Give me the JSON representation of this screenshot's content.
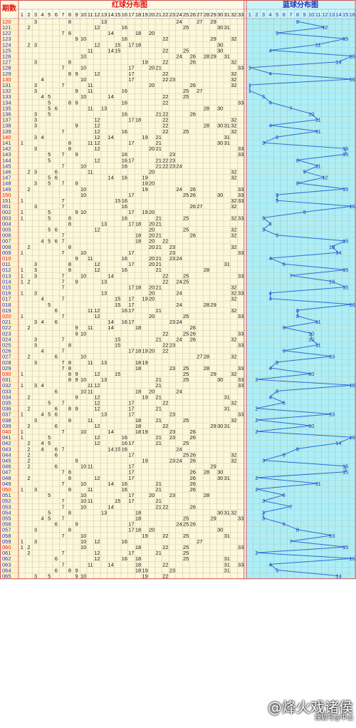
{
  "chart_data": {
    "type": "table",
    "header": {
      "period_label": "期数",
      "red_title": "红球分布图",
      "blue_title": "蓝球分布图"
    },
    "red_columns": [
      "1",
      "2",
      "3",
      "4",
      "5",
      "6",
      "7",
      "8",
      "9",
      "10",
      "11",
      "12",
      "13",
      "14",
      "15",
      "16",
      "17",
      "18",
      "19",
      "20",
      "21",
      "22",
      "23",
      "24",
      "25",
      "26",
      "27",
      "28",
      "29",
      "30",
      "31",
      "32",
      "33"
    ],
    "blue_columns": [
      "1",
      "2",
      "3",
      "4",
      "5",
      "6",
      "7",
      "8",
      "9",
      "10",
      "11",
      "12",
      "13",
      "14",
      "15",
      "16"
    ],
    "colors": {
      "red_ball": "#e41010",
      "number_text": "#111111",
      "blue_ball": "#1a2fb8",
      "blue_line": "#2b6fd6",
      "blue_bg": "#aeeef6",
      "red_bg": "#fdf8dc",
      "grid": "#c9c2a0",
      "period_bg": "#fff1c8"
    },
    "draws": [
      {
        "period": "120",
        "red": [
          3,
          8,
          13,
          24,
          27,
          29
        ],
        "blue": 8
      },
      {
        "period": "121",
        "red": [
          2,
          12,
          16,
          25,
          30,
          31
        ],
        "blue": 12
      },
      {
        "period": "122",
        "red": [
          7,
          8,
          14,
          18,
          20
        ],
        "blue": 5
      },
      {
        "period": "123",
        "red": [
          9,
          10,
          16,
          22,
          29,
          32
        ],
        "blue": 15
      },
      {
        "period": "124",
        "red": [
          2,
          3,
          12,
          15,
          17,
          18,
          30
        ],
        "blue": 11
      },
      {
        "period": "125",
        "red": [
          11,
          14,
          15,
          22,
          25,
          30
        ],
        "blue": 4
      },
      {
        "period": "126",
        "red": [
          10,
          24,
          26,
          28,
          29,
          31
        ],
        "blue": 16
      },
      {
        "period": "127",
        "red": [
          3,
          8,
          19,
          22,
          26,
          32
        ],
        "blue": 14
      },
      {
        "period": "128",
        "red": [
          7,
          10,
          17,
          20,
          21,
          33
        ],
        "blue": 1
      },
      {
        "period": "129",
        "red": [
          8,
          9,
          12,
          17,
          22,
          32
        ],
        "blue": 4
      },
      {
        "period": "130",
        "red": [
          4,
          10,
          17,
          22,
          23,
          32
        ],
        "blue": 16
      },
      {
        "period": "131",
        "red": [
          3,
          7,
          11,
          20,
          26,
          32
        ],
        "blue": 1
      },
      {
        "period": "132",
        "red": [
          3,
          9,
          11,
          16,
          25,
          27
        ],
        "blue": 1
      },
      {
        "period": "133",
        "red": [
          4,
          5,
          10,
          14,
          22,
          25
        ],
        "blue": 3
      },
      {
        "period": "134",
        "red": [
          5,
          8,
          9,
          16,
          22,
          33
        ],
        "blue": 4
      },
      {
        "period": "135",
        "red": [
          5,
          6,
          11,
          13,
          28,
          30
        ],
        "blue": 7
      },
      {
        "period": "136",
        "red": [
          3,
          5,
          16,
          21,
          22,
          26
        ],
        "blue": 10
      },
      {
        "period": "137",
        "red": [
          3,
          12,
          17,
          18,
          22,
          32
        ],
        "blue": 11
      },
      {
        "period": "138",
        "red": [
          3,
          9,
          12,
          22,
          28,
          30,
          31,
          32
        ],
        "blue": 4
      },
      {
        "period": "139",
        "red": [
          7,
          12,
          16,
          22,
          25,
          32
        ],
        "blue": 11
      },
      {
        "period": "140",
        "red": [
          3,
          4,
          12,
          14,
          19,
          21,
          31
        ],
        "blue": 5
      },
      {
        "period": "141",
        "red": [
          1,
          8,
          11,
          12,
          17,
          21,
          30,
          31
        ],
        "blue": 3
      },
      {
        "period": "142",
        "red": [
          3,
          8,
          12,
          20,
          21,
          33
        ],
        "blue": 15
      },
      {
        "period": "143",
        "red": [
          5,
          7,
          9,
          16,
          23,
          33
        ],
        "blue": 15
      },
      {
        "period": "144",
        "red": [
          5,
          12,
          16,
          17,
          21,
          22,
          23
        ],
        "blue": 8
      },
      {
        "period": "145",
        "red": [
          7,
          10,
          16,
          21,
          22,
          23,
          24
        ],
        "blue": 11
      },
      {
        "period": "146",
        "red": [
          2,
          3,
          6,
          11,
          20,
          32
        ],
        "blue": 9
      },
      {
        "period": "147",
        "red": [
          5,
          6,
          14,
          16,
          19,
          32
        ],
        "blue": 12
      },
      {
        "period": "148",
        "red": [
          3,
          5,
          7,
          9,
          19,
          20
        ],
        "blue": 8
      },
      {
        "period": "149",
        "red": [
          2,
          10,
          19,
          24,
          26,
          33
        ],
        "blue": 15
      },
      {
        "period": "150",
        "red": [
          10,
          17,
          25,
          26,
          30,
          33
        ],
        "blue": 5
      },
      {
        "period": "151",
        "red": [
          1,
          7,
          15,
          16,
          32,
          33
        ],
        "blue": 5
      },
      {
        "period": "001",
        "red": [
          3,
          7,
          16,
          26,
          27,
          32
        ],
        "blue": 16
      },
      {
        "period": "002",
        "red": [
          1,
          5,
          9,
          10,
          17,
          19,
          20
        ],
        "blue": 9
      },
      {
        "period": "003",
        "red": [
          1,
          5,
          8,
          16,
          21,
          25,
          32,
          33
        ],
        "blue": 3
      },
      {
        "period": "004",
        "red": [
          8,
          13,
          17,
          18,
          20,
          21
        ],
        "blue": 4
      },
      {
        "period": "005",
        "red": [
          5,
          6,
          12,
          20,
          25,
          32
        ],
        "blue": 3
      },
      {
        "period": "006",
        "red": [
          7,
          18,
          20,
          21,
          26,
          32
        ],
        "blue": 5
      },
      {
        "period": "007",
        "red": [
          4,
          5,
          6,
          7,
          18,
          20,
          22
        ],
        "blue": 15
      },
      {
        "period": "008",
        "red": [
          2,
          8,
          20,
          21,
          23,
          32
        ],
        "blue": 13
      },
      {
        "period": "009",
        "red": [
          1,
          7,
          10,
          17,
          23,
          33
        ],
        "blue": 14
      },
      {
        "period": "010",
        "red": [
          9,
          11,
          16,
          20,
          21,
          23,
          24
        ],
        "blue": 4
      },
      {
        "period": "011",
        "red": [
          3,
          8,
          12,
          17,
          20,
          21,
          31
        ],
        "blue": 6
      },
      {
        "period": "012",
        "red": [
          1,
          3,
          8,
          12,
          16,
          21,
          28
        ],
        "blue": 15
      },
      {
        "period": "013",
        "red": [
          1,
          3,
          7,
          10,
          14,
          22,
          25,
          33
        ],
        "blue": 7
      },
      {
        "period": "014",
        "red": [
          1,
          2,
          7,
          9,
          13,
          22,
          24,
          25
        ],
        "blue": 13
      },
      {
        "period": "015",
        "red": [
          7,
          17,
          18,
          20,
          21,
          32
        ],
        "blue": 15
      },
      {
        "period": "016",
        "red": [
          1,
          3,
          13,
          20,
          24,
          32,
          33
        ],
        "blue": 4
      },
      {
        "period": "017",
        "red": [
          4,
          7,
          15,
          17,
          19,
          20,
          32
        ],
        "blue": 4
      },
      {
        "period": "018",
        "red": [
          5,
          15,
          17,
          24,
          28,
          29
        ],
        "blue": 16
      },
      {
        "period": "019",
        "red": [
          6,
          11,
          12,
          16,
          17,
          21,
          32
        ],
        "blue": 8
      },
      {
        "period": "020",
        "red": [
          1,
          7,
          12,
          20,
          25,
          33
        ],
        "blue": 8
      },
      {
        "period": "021",
        "red": [
          3,
          4,
          6,
          14,
          16,
          17,
          23,
          24
        ],
        "blue": 11
      },
      {
        "period": "022",
        "red": [
          2,
          9,
          11,
          14,
          18,
          26
        ],
        "blue": 6
      },
      {
        "period": "023",
        "red": [
          9,
          10,
          22,
          25,
          26,
          33
        ],
        "blue": 10
      },
      {
        "period": "024",
        "red": [
          3,
          7,
          15,
          21,
          24,
          26,
          32
        ],
        "blue": 10
      },
      {
        "period": "025",
        "red": [
          3,
          8,
          15,
          22,
          23,
          33
        ],
        "blue": 11
      },
      {
        "period": "026",
        "red": [
          4,
          7,
          17,
          18,
          19,
          20,
          22
        ],
        "blue": 6
      },
      {
        "period": "027",
        "red": [
          2,
          6,
          10,
          27,
          28,
          32
        ],
        "blue": 13
      },
      {
        "period": "028",
        "red": [
          3,
          7,
          8,
          11,
          13,
          18,
          19
        ],
        "blue": 5
      },
      {
        "period": "029",
        "red": [
          7,
          8,
          18,
          23,
          25,
          28,
          33
        ],
        "blue": 4
      },
      {
        "period": "030",
        "red": [
          1,
          8,
          9,
          12,
          15,
          25,
          29,
          32
        ],
        "blue": 10
      },
      {
        "period": "031",
        "red": [
          8,
          9,
          10,
          13,
          21,
          25,
          30,
          33
        ],
        "blue": 2
      },
      {
        "period": "032",
        "red": [
          1,
          3,
          4,
          11,
          12,
          21,
          33
        ],
        "blue": 16
      },
      {
        "period": "033",
        "red": [
          6,
          10,
          11,
          18,
          20,
          24
        ],
        "blue": 5
      },
      {
        "period": "034",
        "red": [
          2,
          9,
          12,
          19,
          21,
          31
        ],
        "blue": 4
      },
      {
        "period": "035",
        "red": [
          5,
          7,
          12,
          17,
          22,
          32
        ],
        "blue": 6
      },
      {
        "period": "036",
        "red": [
          2,
          6,
          8,
          9,
          12,
          17,
          21,
          31
        ],
        "blue": 2
      },
      {
        "period": "037",
        "red": [
          1,
          4,
          5,
          6,
          13,
          17,
          23,
          33
        ],
        "blue": 13
      },
      {
        "period": "038",
        "red": [
          3,
          8,
          11,
          18,
          21,
          25,
          32
        ],
        "blue": 2
      },
      {
        "period": "039",
        "red": [
          2,
          6,
          12,
          18,
          22,
          29,
          30,
          31
        ],
        "blue": 10
      },
      {
        "period": "040",
        "red": [
          1,
          7,
          10,
          14,
          18,
          19,
          23,
          26
        ],
        "blue": 2
      },
      {
        "period": "041",
        "red": [
          1,
          5,
          12,
          16,
          21,
          23,
          26
        ],
        "blue": 16
      },
      {
        "period": "042",
        "red": [
          2,
          4,
          5,
          12,
          16,
          17,
          21,
          25
        ],
        "blue": 14
      },
      {
        "period": "043",
        "red": [
          2,
          4,
          6,
          7,
          14,
          15,
          16,
          24
        ],
        "blue": 8
      },
      {
        "period": "044",
        "red": [
          2,
          6,
          17,
          25,
          26,
          32
        ],
        "blue": 6
      },
      {
        "period": "045",
        "red": [
          2,
          9,
          19,
          23,
          24,
          26,
          32
        ],
        "blue": 3
      },
      {
        "period": "046",
        "red": [
          2,
          6,
          10,
          11,
          17,
          29
        ],
        "blue": 15
      },
      {
        "period": "047",
        "red": [
          7,
          8,
          17,
          26,
          28,
          30
        ],
        "blue": 15
      },
      {
        "period": "048",
        "red": [
          2,
          8,
          12,
          17,
          26,
          30,
          31
        ],
        "blue": 2
      },
      {
        "period": "049",
        "red": [
          7,
          10,
          14,
          16,
          21,
          26
        ],
        "blue": 11
      },
      {
        "period": "050",
        "red": [
          1,
          3,
          8,
          11,
          16,
          21,
          26
        ],
        "blue": 2
      },
      {
        "period": "051",
        "red": [
          5,
          10,
          17,
          20,
          23,
          28
        ],
        "blue": 6
      },
      {
        "period": "052",
        "red": [
          7,
          10,
          11,
          15,
          17,
          21
        ],
        "blue": 3
      },
      {
        "period": "053",
        "red": [
          7,
          10,
          14,
          21,
          22,
          26
        ],
        "blue": 7
      },
      {
        "period": "054",
        "red": [
          5,
          8,
          13,
          18,
          30,
          31,
          32
        ],
        "blue": 3
      },
      {
        "period": "055",
        "red": [
          4,
          5,
          7,
          18,
          25,
          29,
          33
        ],
        "blue": 3
      },
      {
        "period": "056",
        "red": [
          6,
          9,
          17,
          24,
          25,
          26
        ],
        "blue": 6
      },
      {
        "period": "057",
        "red": [
          3,
          8,
          17,
          18,
          20,
          30
        ],
        "blue": 8
      },
      {
        "period": "058",
        "red": [
          7,
          10,
          19,
          22,
          25,
          31
        ],
        "blue": 13
      },
      {
        "period": "059",
        "red": [
          1,
          3,
          10,
          12,
          16,
          27
        ],
        "blue": 7
      },
      {
        "period": "060",
        "red": [
          1,
          2,
          10,
          18,
          22,
          25,
          33
        ],
        "blue": 15
      },
      {
        "period": "061",
        "red": [
          2,
          7,
          12,
          17,
          21,
          25
        ],
        "blue": 2
      },
      {
        "period": "062",
        "red": [
          6,
          12,
          16,
          18,
          25,
          31
        ],
        "blue": 16
      },
      {
        "period": "063",
        "red": [
          7,
          11,
          14,
          18,
          22,
          31,
          33
        ],
        "blue": 4
      },
      {
        "period": "064",
        "red": [
          6,
          8,
          9,
          18,
          19,
          23,
          31
        ],
        "blue": 5
      },
      {
        "period": "065",
        "red": [
          3,
          5,
          9,
          10,
          19,
          22
        ],
        "blue": 14
      }
    ],
    "watermark": {
      "text": "@烽火戏诸侯",
      "source": "搜狐号@中山"
    }
  }
}
